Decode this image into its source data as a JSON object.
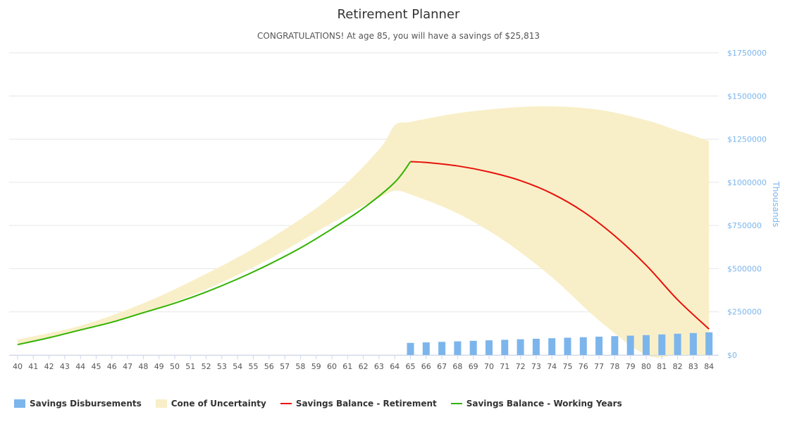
{
  "chart_data": {
    "type": "bar",
    "title": "Retirement Planner",
    "subtitle": "CONGRATULATIONS! At age 85, you will have a savings of $25,813",
    "categories": [
      "40",
      "41",
      "42",
      "43",
      "44",
      "45",
      "46",
      "47",
      "48",
      "49",
      "50",
      "51",
      "52",
      "53",
      "54",
      "55",
      "56",
      "57",
      "58",
      "59",
      "60",
      "61",
      "62",
      "63",
      "64",
      "65",
      "66",
      "67",
      "68",
      "69",
      "70",
      "71",
      "72",
      "73",
      "74",
      "75",
      "76",
      "77",
      "78",
      "79",
      "80",
      "81",
      "82",
      "83",
      "84"
    ],
    "y_axis": {
      "label": "Thousands",
      "position": "right",
      "ylim": [
        0,
        1750000
      ],
      "ticks": [
        0,
        250000,
        500000,
        750000,
        1000000,
        1250000,
        1500000,
        1750000
      ],
      "tick_labels": [
        "$0",
        "$250000",
        "$500000",
        "$750000",
        "$1000000",
        "$1250000",
        "$1500000",
        "$1750000"
      ]
    },
    "grid": true,
    "legend_position": "bottom-left",
    "series": [
      {
        "name": "Savings Disbursements",
        "kind": "column",
        "color": "#7cb5ec",
        "x": [
          "65",
          "66",
          "67",
          "68",
          "69",
          "70",
          "71",
          "72",
          "73",
          "74",
          "75",
          "76",
          "77",
          "78",
          "79",
          "80",
          "81",
          "82",
          "83",
          "84"
        ],
        "values": [
          70000,
          73000,
          76000,
          79000,
          82000,
          85000,
          88000,
          91000,
          94000,
          97000,
          100000,
          103000,
          106000,
          109000,
          112000,
          115000,
          119000,
          123000,
          127000,
          131000
        ]
      },
      {
        "name": "Cone of Uncertainty",
        "kind": "arearange",
        "color": "#f8efc8",
        "x": [
          "40",
          "44",
          "48",
          "52",
          "56",
          "60",
          "63",
          "64",
          "65",
          "68",
          "71",
          "74",
          "77",
          "80",
          "82",
          "84"
        ],
        "low": [
          60000,
          140000,
          245000,
          380000,
          555000,
          765000,
          910000,
          950000,
          930000,
          820000,
          660000,
          450000,
          200000,
          0,
          0,
          0
        ],
        "high": [
          90000,
          170000,
          300000,
          470000,
          670000,
          920000,
          1190000,
          1330000,
          1350000,
          1400000,
          1430000,
          1440000,
          1420000,
          1360000,
          1300000,
          1240000
        ]
      },
      {
        "name": "Savings Balance - Retirement",
        "kind": "line",
        "color": "#e8120c",
        "x": [
          "65",
          "66",
          "68",
          "70",
          "72",
          "74",
          "76",
          "78",
          "80",
          "82",
          "84"
        ],
        "values": [
          1120000,
          1115000,
          1095000,
          1060000,
          1010000,
          935000,
          830000,
          690000,
          520000,
          320000,
          150000
        ]
      },
      {
        "name": "Savings Balance - Working Years",
        "kind": "line",
        "color": "#33b200",
        "x": [
          "40",
          "42",
          "44",
          "46",
          "48",
          "50",
          "52",
          "54",
          "56",
          "58",
          "60",
          "62",
          "64",
          "65"
        ],
        "values": [
          60000,
          100000,
          145000,
          190000,
          245000,
          300000,
          365000,
          440000,
          525000,
          620000,
          730000,
          850000,
          1000000,
          1120000
        ]
      }
    ]
  },
  "legend": {
    "disbursements": "Savings Disbursements",
    "cone": "Cone of Uncertainty",
    "retirement": "Savings Balance - Retirement",
    "working": "Savings Balance - Working Years"
  },
  "colors": {
    "grid": "#e6e6e6",
    "axis": "#ccd6eb"
  }
}
